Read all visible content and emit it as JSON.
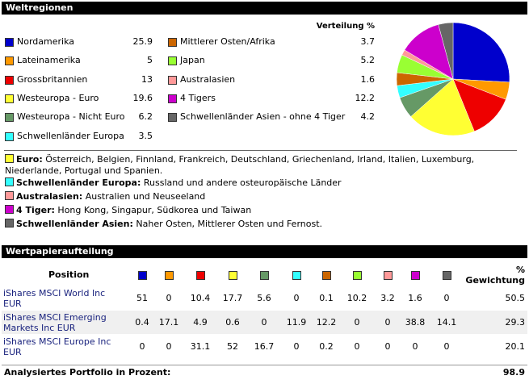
{
  "section1": {
    "title": "Weltregionen",
    "distribution_header": "Verteilung %",
    "regions": [
      {
        "name": "Nordamerika",
        "color": "#0000cc",
        "value": 25.9
      },
      {
        "name": "Lateinamerika",
        "color": "#ff9900",
        "value": 5
      },
      {
        "name": "Grossbritannien",
        "color": "#ee0000",
        "value": 13
      },
      {
        "name": "Westeuropa - Euro",
        "color": "#ffff33",
        "value": 19.6
      },
      {
        "name": "Westeuropa - Nicht Euro",
        "color": "#669966",
        "value": 6.2
      },
      {
        "name": "Schwellenländer Europa",
        "color": "#33ffff",
        "value": 3.5
      },
      {
        "name": "Mittlerer Osten/Afrika",
        "color": "#cc6600",
        "value": 3.7
      },
      {
        "name": "Japan",
        "color": "#99ff33",
        "value": 5.2
      },
      {
        "name": "Australasien",
        "color": "#ff9999",
        "value": 1.6
      },
      {
        "name": "4 Tigers",
        "color": "#cc00cc",
        "value": 12.2
      },
      {
        "name": "Schwellenländer Asien - ohne 4 Tiger",
        "color": "#666666",
        "value": 4.2
      }
    ]
  },
  "notes": [
    {
      "term": "Euro:",
      "color": "#ffff33",
      "text": "Österreich, Belgien, Finnland, Frankreich, Deutschland, Griechenland, Irland, Italien, Luxemburg, Niederlande, Portugal und Spanien."
    },
    {
      "term": "Schwellenländer Europa:",
      "color": "#33ffff",
      "text": "Russland und andere osteuropäische Länder"
    },
    {
      "term": "Australasien:",
      "color": "#ff9999",
      "text": "Australien und Neuseeland"
    },
    {
      "term": "4 Tiger:",
      "color": "#cc00cc",
      "text": "Hong Kong, Singapur, Südkorea und Taiwan"
    },
    {
      "term": "Schwellenländer Asien:",
      "color": "#666666",
      "text": "Naher Osten, Mittlerer Osten und Fernost."
    }
  ],
  "section2": {
    "title": "Wertpapieraufteilung",
    "position_header": "Position",
    "weight_header_pct": "%",
    "weight_header": "Gewichtung",
    "rows": [
      {
        "name": "iShares MSCI World Inc EUR",
        "values": [
          51,
          0,
          10.4,
          17.7,
          5.6,
          0,
          0.1,
          10.2,
          3.2,
          1.6,
          0
        ],
        "weight": 50.5
      },
      {
        "name": "iShares MSCI Emerging Markets Inc EUR",
        "values": [
          0.4,
          17.1,
          4.9,
          0.6,
          0,
          11.9,
          12.2,
          0,
          0,
          38.8,
          14.1
        ],
        "weight": 29.3
      },
      {
        "name": "iShares MSCI Europe Inc EUR",
        "values": [
          0,
          0,
          31.1,
          52,
          16.7,
          0,
          0.2,
          0,
          0,
          0,
          0
        ],
        "weight": 20.1
      }
    ],
    "total_label": "Analysiertes Portfolio in Prozent:",
    "total": 98.9
  }
}
